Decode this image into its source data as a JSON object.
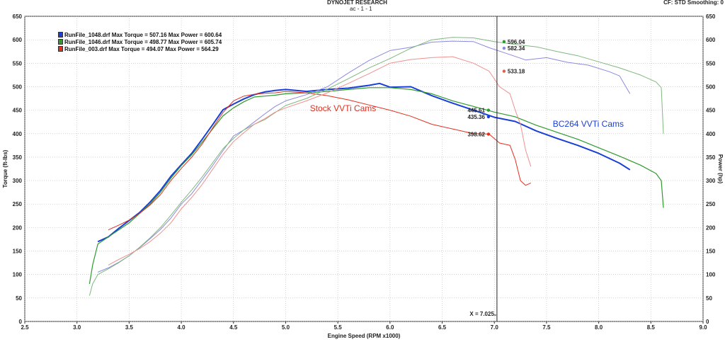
{
  "header": {
    "title": "DYNOJET RESEARCH",
    "subtitle": "ac - 1 - 1",
    "right_info": "CF: STD  Smoothing: 0"
  },
  "chart_data": {
    "type": "line",
    "xlabel": "Engine Speed (RPM x1000)",
    "ylabel_left": "Torque (ft-lbs)",
    "ylabel_right": "Power (hp)",
    "xlim": [
      2.5,
      9.0
    ],
    "ylim": [
      0,
      650
    ],
    "x_ticks": [
      2.5,
      3.0,
      3.5,
      4.0,
      4.5,
      5.0,
      5.5,
      6.0,
      6.5,
      7.0,
      7.5,
      8.0,
      8.5,
      9.0
    ],
    "x_tick_labels": [
      "2.5",
      "3.0",
      "3.5",
      "4.0",
      "4.5",
      "5.0",
      "5.5",
      "6.0",
      "6.5",
      "7.0",
      "7.5",
      "8.0",
      "8.5",
      "9.0"
    ],
    "y_ticks": [
      0,
      50,
      100,
      150,
      200,
      250,
      300,
      350,
      400,
      450,
      500,
      550,
      600,
      650
    ],
    "y_tick_labels": [
      "0",
      "50",
      "100",
      "150",
      "200",
      "250",
      "300",
      "350",
      "400",
      "450",
      "500",
      "550",
      "600",
      "650"
    ],
    "grid": true,
    "cursor": {
      "x": 7.025,
      "label": "X = 7.025"
    },
    "legend": [
      {
        "text": "RunFile_1048.drf Max Torque = 507.16 Max Power = 600.64",
        "color": "#1a3fd6"
      },
      {
        "text": "RunFile_1046.drf Max Torque = 498.77 Max Power = 605.74",
        "color": "#2e9a2e"
      },
      {
        "text": "RunFile_003.drf Max Torque = 494.07 Max Power = 564.29",
        "color": "#e03020"
      }
    ],
    "annotations": [
      {
        "text": "Stock VVTi Cams",
        "x": 5.55,
        "y": 448,
        "color": "#e03020"
      },
      {
        "text": "BC264 VVTi Cams",
        "x": 7.9,
        "y": 415,
        "color": "#1a3fd6"
      }
    ],
    "cursor_values": [
      {
        "text": "596.04",
        "y": 596,
        "side": "right",
        "color": "#2e9a2e"
      },
      {
        "text": "582.34",
        "y": 582,
        "side": "right",
        "color": "#8a8ae0"
      },
      {
        "text": "533.18",
        "y": 533,
        "side": "right",
        "color": "#e06050"
      },
      {
        "text": "445.61",
        "y": 450,
        "side": "left",
        "color": "#2e9a2e"
      },
      {
        "text": "435.36",
        "y": 436,
        "side": "left",
        "color": "#1a3fd6"
      },
      {
        "text": "398.62",
        "y": 399,
        "side": "left",
        "color": "#e03020"
      }
    ],
    "series": [
      {
        "name": "RunFile_1048.drf",
        "kind": "torque",
        "color": "#1a3fd6",
        "width": 2,
        "x": [
          3.2,
          3.3,
          3.4,
          3.5,
          3.6,
          3.7,
          3.8,
          3.9,
          4.0,
          4.1,
          4.2,
          4.3,
          4.4,
          4.5,
          4.6,
          4.7,
          4.8,
          4.9,
          5.0,
          5.2,
          5.4,
          5.6,
          5.8,
          5.9,
          6.0,
          6.2,
          6.4,
          6.6,
          6.8,
          7.0,
          7.2,
          7.4,
          7.6,
          7.8,
          8.0,
          8.2,
          8.3
        ],
        "y": [
          170,
          180,
          198,
          215,
          232,
          254,
          279,
          309,
          334,
          358,
          388,
          419,
          451,
          463,
          474,
          483,
          489,
          492,
          494,
          490,
          494,
          497,
          503,
          507,
          499,
          500,
          481,
          465,
          450,
          435,
          426,
          406,
          390,
          375,
          358,
          337,
          323
        ]
      },
      {
        "name": "RunFile_1046.drf",
        "kind": "torque",
        "color": "#2e9a2e",
        "width": 1.2,
        "x": [
          3.12,
          3.15,
          3.2,
          3.3,
          3.4,
          3.5,
          3.6,
          3.7,
          3.8,
          3.9,
          4.0,
          4.1,
          4.2,
          4.3,
          4.4,
          4.5,
          4.6,
          4.7,
          4.8,
          4.9,
          5.0,
          5.2,
          5.4,
          5.6,
          5.8,
          6.0,
          6.2,
          6.4,
          6.6,
          6.8,
          7.0,
          7.2,
          7.4,
          7.6,
          7.8,
          8.0,
          8.2,
          8.4,
          8.55,
          8.6,
          8.62
        ],
        "y": [
          80,
          120,
          165,
          180,
          195,
          210,
          230,
          250,
          275,
          305,
          332,
          355,
          382,
          410,
          438,
          455,
          468,
          478,
          480,
          482,
          485,
          487,
          490,
          494,
          498,
          498,
          494,
          485,
          470,
          458,
          446,
          436,
          418,
          403,
          388,
          370,
          352,
          333,
          315,
          300,
          242
        ]
      },
      {
        "name": "RunFile_003.drf",
        "kind": "torque",
        "color": "#e03020",
        "width": 1,
        "x": [
          3.3,
          3.4,
          3.5,
          3.6,
          3.7,
          3.8,
          3.9,
          4.0,
          4.1,
          4.2,
          4.3,
          4.4,
          4.5,
          4.6,
          4.7,
          4.8,
          4.9,
          5.0,
          5.2,
          5.4,
          5.6,
          5.8,
          6.0,
          6.2,
          6.4,
          6.6,
          6.8,
          6.95,
          7.05,
          7.15,
          7.2,
          7.25,
          7.3,
          7.35
        ],
        "y": [
          195,
          205,
          216,
          230,
          248,
          270,
          300,
          326,
          350,
          378,
          412,
          445,
          470,
          480,
          484,
          486,
          487,
          490,
          487,
          481,
          472,
          461,
          450,
          437,
          420,
          410,
          400,
          399,
          380,
          375,
          345,
          300,
          290,
          295
        ]
      },
      {
        "name": "RunFile_1048.drf",
        "kind": "power",
        "color": "#8a8ae0",
        "width": 1,
        "x": [
          3.2,
          3.3,
          3.4,
          3.5,
          3.6,
          3.7,
          3.8,
          3.9,
          4.0,
          4.1,
          4.2,
          4.3,
          4.4,
          4.5,
          4.6,
          4.7,
          4.8,
          4.9,
          5.0,
          5.2,
          5.4,
          5.6,
          5.8,
          6.0,
          6.2,
          6.4,
          6.6,
          6.8,
          6.95,
          7.1,
          7.3,
          7.5,
          7.7,
          7.9,
          8.1,
          8.2,
          8.3
        ],
        "y": [
          105,
          114,
          126,
          140,
          157,
          176,
          196,
          220,
          250,
          272,
          302,
          332,
          364,
          395,
          408,
          425,
          442,
          458,
          470,
          483,
          500,
          529,
          556,
          577,
          584,
          595,
          597,
          596,
          583,
          572,
          557,
          562,
          552,
          546,
          532,
          523,
          485
        ]
      },
      {
        "name": "RunFile_1046.drf",
        "kind": "power",
        "color": "#7fb87f",
        "width": 1,
        "x": [
          3.12,
          3.15,
          3.2,
          3.3,
          3.4,
          3.5,
          3.6,
          3.7,
          3.8,
          3.9,
          4.0,
          4.1,
          4.2,
          4.3,
          4.4,
          4.5,
          4.6,
          4.7,
          4.8,
          4.9,
          5.0,
          5.2,
          5.4,
          5.6,
          5.8,
          6.0,
          6.2,
          6.4,
          6.6,
          6.8,
          7.0,
          7.2,
          7.4,
          7.6,
          7.8,
          8.0,
          8.2,
          8.4,
          8.55,
          8.6,
          8.62
        ],
        "y": [
          55,
          80,
          100,
          112,
          125,
          140,
          158,
          178,
          200,
          226,
          254,
          280,
          308,
          338,
          368,
          390,
          408,
          420,
          430,
          445,
          460,
          475,
          495,
          517,
          540,
          560,
          582,
          600,
          605,
          604,
          596,
          590,
          585,
          575,
          566,
          553,
          540,
          525,
          510,
          498,
          400
        ]
      },
      {
        "name": "RunFile_003.drf",
        "kind": "power",
        "color": "#f09090",
        "width": 1,
        "x": [
          3.3,
          3.4,
          3.5,
          3.6,
          3.7,
          3.8,
          3.9,
          4.0,
          4.1,
          4.2,
          4.3,
          4.4,
          4.5,
          4.6,
          4.7,
          4.8,
          4.9,
          5.0,
          5.2,
          5.4,
          5.6,
          5.8,
          6.0,
          6.2,
          6.4,
          6.6,
          6.8,
          6.95,
          7.05,
          7.15,
          7.2,
          7.25,
          7.3,
          7.35
        ],
        "y": [
          120,
          132,
          143,
          155,
          170,
          188,
          210,
          240,
          264,
          292,
          324,
          356,
          383,
          402,
          420,
          432,
          446,
          455,
          470,
          487,
          507,
          528,
          550,
          558,
          562,
          564,
          550,
          533,
          500,
          485,
          450,
          420,
          365,
          330
        ]
      }
    ]
  }
}
